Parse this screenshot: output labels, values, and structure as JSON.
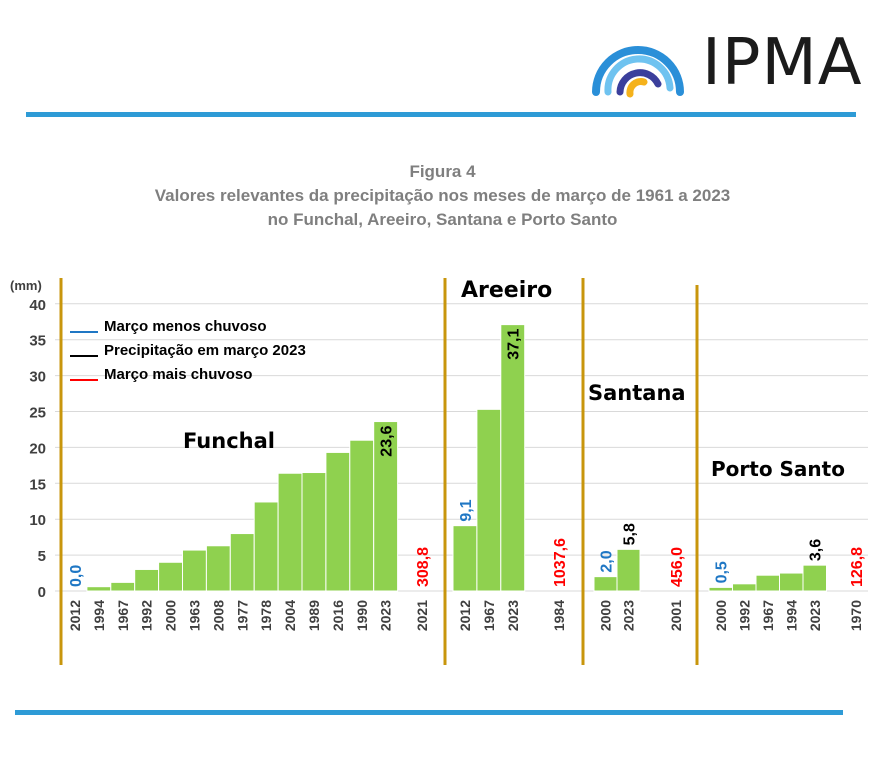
{
  "logo": {
    "text": "IPMA"
  },
  "figure": {
    "label": "Figura 4",
    "title_line1": "Valores relevantes da precipitação nos meses de março de 1961 a 2023",
    "title_line2": "no Funchal, Areeiro, Santana e Porto Santo"
  },
  "colors": {
    "bar": "#8fd14f",
    "min": "#1f77c4",
    "current": "#000000",
    "max": "#ff0000",
    "divider": "#c8960c",
    "grid": "#d9d9d9",
    "rule": "#2e9bd6"
  },
  "chart_data": {
    "type": "bar",
    "ylabel": "(mm)",
    "ylim": [
      0,
      40
    ],
    "yticks": [
      0,
      5,
      10,
      15,
      20,
      25,
      30,
      35,
      40
    ],
    "legend": {
      "placement": "top-left",
      "items": [
        {
          "label": "Março menos chuvoso",
          "color": "#1f77c4"
        },
        {
          "label": "Precipitação em março 2023",
          "color": "#000000"
        },
        {
          "label": "Março mais chuvoso",
          "color": "#ff0000"
        }
      ]
    },
    "groups": [
      {
        "name": "Funchal",
        "categories": [
          "2012",
          "1994",
          "1967",
          "1992",
          "2000",
          "1963",
          "2008",
          "1977",
          "1978",
          "2004",
          "1989",
          "2016",
          "1990",
          "2023"
        ],
        "values": [
          0.0,
          0.6,
          1.2,
          3.0,
          4.0,
          5.7,
          6.3,
          8.0,
          12.4,
          16.4,
          16.5,
          19.3,
          21.0,
          23.6
        ],
        "labels": [
          {
            "index": 0,
            "text": "0,0",
            "kind": "min"
          },
          {
            "index": 13,
            "text": "23,6",
            "kind": "current"
          }
        ],
        "max": {
          "year": "2021",
          "text": "308,8"
        }
      },
      {
        "name": "Areeiro",
        "categories": [
          "2012",
          "1967",
          "2023"
        ],
        "values": [
          9.1,
          25.3,
          37.1
        ],
        "labels": [
          {
            "index": 0,
            "text": "9,1",
            "kind": "min"
          },
          {
            "index": 2,
            "text": "37,1",
            "kind": "current"
          }
        ],
        "max": {
          "year": "1984",
          "text": "1037,6"
        }
      },
      {
        "name": "Santana",
        "categories": [
          "2000",
          "2023"
        ],
        "values": [
          2.0,
          5.8
        ],
        "labels": [
          {
            "index": 0,
            "text": "2,0",
            "kind": "min"
          },
          {
            "index": 1,
            "text": "5,8",
            "kind": "current"
          }
        ],
        "max": {
          "year": "2001",
          "text": "456,0"
        }
      },
      {
        "name": "Porto Santo",
        "categories": [
          "2000",
          "1992",
          "1967",
          "1994",
          "2023"
        ],
        "values": [
          0.5,
          1.0,
          2.2,
          2.5,
          3.6
        ],
        "labels": [
          {
            "index": 0,
            "text": "0,5",
            "kind": "min"
          },
          {
            "index": 4,
            "text": "3,6",
            "kind": "current"
          }
        ],
        "max": {
          "year": "1970",
          "text": "126,8"
        }
      }
    ]
  }
}
